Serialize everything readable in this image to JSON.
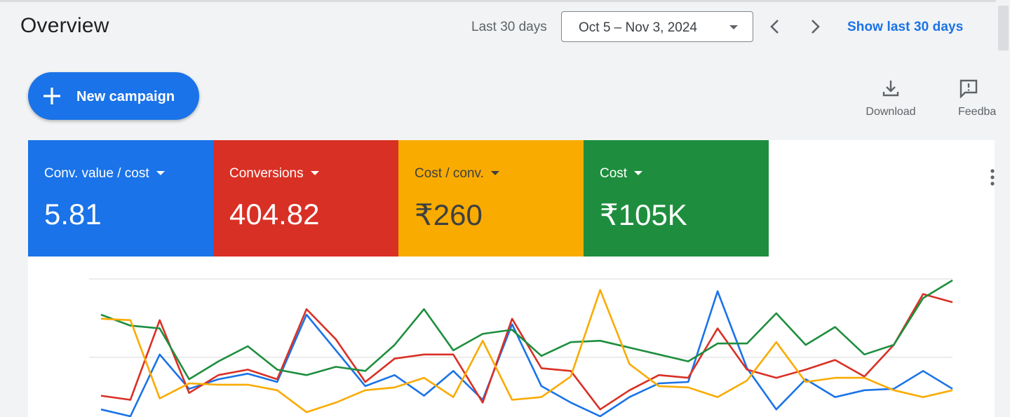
{
  "header": {
    "title": "Overview",
    "range_label": "Last 30 days",
    "date_range": "Oct 5 – Nov 3, 2024",
    "show_link": "Show last 30 days"
  },
  "actions": {
    "new_campaign": "New campaign",
    "download": "Download",
    "feedback": "Feedback"
  },
  "metrics": [
    {
      "label": "Conv. value / cost",
      "value": "5.81",
      "color": "#1a73e8"
    },
    {
      "label": "Conversions",
      "value": "404.82",
      "color": "#d93025"
    },
    {
      "label": "Cost / conv.",
      "value": "₹260",
      "color": "#f9ab00"
    },
    {
      "label": "Cost",
      "value": "₹105K",
      "color": "#1e8e3e"
    }
  ],
  "chart_data": {
    "type": "line",
    "x": [
      1,
      2,
      3,
      4,
      5,
      6,
      7,
      8,
      9,
      10,
      11,
      12,
      13,
      14,
      15,
      16,
      17,
      18,
      19,
      20,
      21,
      22,
      23,
      24,
      25,
      26,
      27,
      28,
      29,
      30
    ],
    "ylim": [
      0,
      100
    ],
    "grid": true,
    "series": [
      {
        "color": "#1a73e8",
        "values": [
          5,
          0,
          45,
          20,
          27,
          31,
          25,
          74,
          48,
          22,
          30,
          15,
          33,
          12,
          67,
          22,
          10,
          0,
          14,
          24,
          25,
          91,
          35,
          5,
          27,
          14,
          19,
          20,
          33,
          20
        ]
      },
      {
        "color": "#d93025",
        "values": [
          15,
          12,
          70,
          17,
          30,
          34,
          27,
          78,
          56,
          25,
          42,
          45,
          45,
          10,
          71,
          35,
          33,
          5,
          19,
          30,
          28,
          64,
          34,
          28,
          34,
          41,
          29,
          52,
          89,
          83
        ]
      },
      {
        "color": "#1e8e3e",
        "values": [
          74,
          66,
          64,
          27,
          40,
          51,
          34,
          30,
          36,
          33,
          52,
          78,
          48,
          60,
          63,
          44,
          54,
          55,
          50,
          45,
          40,
          53,
          53,
          75,
          52,
          65,
          45,
          52,
          86,
          99
        ]
      },
      {
        "color": "#f9ab00",
        "values": [
          71,
          70,
          13,
          24,
          23,
          23,
          19,
          3,
          10,
          19,
          21,
          28,
          14,
          55,
          12,
          14,
          29,
          92,
          38,
          22,
          21,
          14,
          26,
          54,
          25,
          28,
          28,
          19,
          14,
          19
        ]
      }
    ]
  }
}
